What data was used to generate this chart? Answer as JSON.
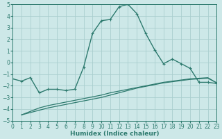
{
  "xlabel": "Humidex (Indice chaleur)",
  "background_color": "#cde8e8",
  "grid_color": "#aacece",
  "line_color": "#2d7a6e",
  "xlim": [
    0,
    23
  ],
  "ylim": [
    -5,
    5
  ],
  "xticks": [
    0,
    1,
    2,
    3,
    4,
    5,
    6,
    7,
    8,
    9,
    10,
    11,
    12,
    13,
    14,
    15,
    16,
    17,
    18,
    19,
    20,
    21,
    22,
    23
  ],
  "yticks": [
    -5,
    -4,
    -3,
    -2,
    -1,
    0,
    1,
    2,
    3,
    4,
    5
  ],
  "series": [
    {
      "x": [
        0,
        1,
        2,
        3,
        4,
        5,
        6,
        7,
        8,
        9,
        10,
        11,
        12,
        13,
        14,
        15,
        16,
        17,
        18,
        19,
        20,
        21,
        22,
        23
      ],
      "y": [
        -1.4,
        -1.6,
        -1.3,
        -2.6,
        -2.3,
        -2.3,
        -2.4,
        -2.3,
        -0.4,
        2.5,
        3.6,
        3.7,
        4.8,
        5.0,
        4.2,
        2.5,
        1.1,
        -0.1,
        0.3,
        -0.1,
        -0.5,
        -1.7,
        -1.7,
        -1.8
      ],
      "marker": "+",
      "lw": 1.0
    },
    {
      "x": [
        1,
        2,
        3,
        4,
        5,
        6,
        7,
        8,
        9,
        10,
        11,
        12,
        13,
        14,
        15,
        16,
        17,
        18,
        19,
        20,
        21,
        22,
        23
      ],
      "y": [
        -4.5,
        -4.2,
        -3.9,
        -3.7,
        -3.55,
        -3.4,
        -3.25,
        -3.1,
        -2.95,
        -2.8,
        -2.6,
        -2.45,
        -2.3,
        -2.15,
        -2.0,
        -1.85,
        -1.7,
        -1.6,
        -1.5,
        -1.4,
        -1.35,
        -1.3,
        -1.75
      ],
      "marker": null,
      "lw": 0.9
    },
    {
      "x": [
        1,
        2,
        3,
        4,
        5,
        6,
        7,
        8,
        9,
        10,
        11,
        12,
        13,
        14,
        15,
        16,
        17,
        18,
        19,
        20,
        21,
        22,
        23
      ],
      "y": [
        -4.5,
        -4.3,
        -4.1,
        -3.9,
        -3.75,
        -3.6,
        -3.45,
        -3.3,
        -3.15,
        -3.0,
        -2.8,
        -2.6,
        -2.4,
        -2.2,
        -2.05,
        -1.9,
        -1.75,
        -1.65,
        -1.55,
        -1.45,
        -1.4,
        -1.35,
        -1.75
      ],
      "marker": null,
      "lw": 0.9
    }
  ]
}
